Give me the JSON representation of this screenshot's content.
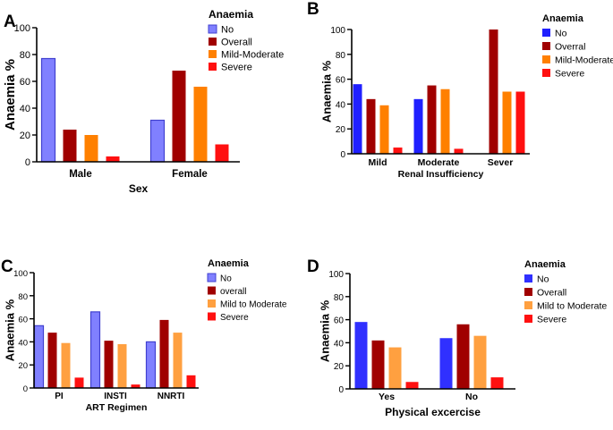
{
  "chart_data": [
    {
      "panel": "A",
      "type": "bar",
      "title": "",
      "xlabel": "Sex",
      "ylabel": "Anaemia %",
      "ylim": [
        0,
        100
      ],
      "yticks": [
        0,
        20,
        40,
        60,
        80,
        100
      ],
      "categories": [
        "Male",
        "Female"
      ],
      "legend_title": "Anaemia",
      "legend_position": "top-right",
      "series": [
        {
          "name": "No",
          "color": "#8080ff",
          "values": [
            77,
            31
          ]
        },
        {
          "name": "Overall",
          "color": "#a00000",
          "values": [
            24,
            68
          ]
        },
        {
          "name": "Mild-Moderate",
          "color": "#ff8000",
          "values": [
            20,
            56
          ]
        },
        {
          "name": "Severe",
          "color": "#ff1010",
          "values": [
            4,
            13
          ]
        }
      ]
    },
    {
      "panel": "B",
      "type": "bar",
      "title": "",
      "xlabel": "Renal Insufficiency",
      "ylabel": "Anaemia %",
      "ylim": [
        0,
        100
      ],
      "yticks": [
        0,
        20,
        40,
        60,
        80,
        100
      ],
      "categories": [
        "Mild",
        "Moderate",
        "Sever"
      ],
      "legend_title": "Anaemia",
      "legend_position": "top-right",
      "series": [
        {
          "name": "No",
          "color": "#2020ff",
          "values": [
            56,
            44,
            0
          ]
        },
        {
          "name": "Overral",
          "color": "#a00000",
          "values": [
            44,
            55,
            100
          ]
        },
        {
          "name": "Mild-Moderate",
          "color": "#ff8000",
          "values": [
            39,
            52,
            50
          ]
        },
        {
          "name": "Severe",
          "color": "#ff1010",
          "values": [
            5,
            4,
            50
          ]
        }
      ]
    },
    {
      "panel": "C",
      "type": "bar",
      "title": "",
      "xlabel": "ART Regimen",
      "ylabel": "Anaemia %",
      "ylim": [
        0,
        100
      ],
      "yticks": [
        0,
        20,
        40,
        60,
        80,
        100
      ],
      "categories": [
        "PI",
        "INSTI",
        "NNRTI"
      ],
      "legend_title": "Anaemia",
      "legend_position": "top-right",
      "series": [
        {
          "name": "No",
          "color": "#8080ff",
          "values": [
            54,
            66,
            40
          ]
        },
        {
          "name": "overall",
          "color": "#a00000",
          "values": [
            48,
            41,
            59
          ]
        },
        {
          "name": "Mild to Moderate",
          "color": "#ffa040",
          "values": [
            39,
            38,
            48
          ]
        },
        {
          "name": "Severe",
          "color": "#ff1010",
          "values": [
            9,
            3,
            11
          ]
        }
      ]
    },
    {
      "panel": "D",
      "type": "bar",
      "title": "",
      "xlabel": "Physical excercise",
      "ylabel": "Anaemia %",
      "ylim": [
        0,
        100
      ],
      "yticks": [
        0,
        20,
        40,
        60,
        80,
        100
      ],
      "categories": [
        "Yes",
        "No"
      ],
      "legend_title": "Anaemia",
      "legend_position": "top-right",
      "series": [
        {
          "name": "No",
          "color": "#3030ff",
          "values": [
            58,
            44
          ]
        },
        {
          "name": "Overall",
          "color": "#a00000",
          "values": [
            42,
            56
          ]
        },
        {
          "name": "Mild to Moderate",
          "color": "#ffa040",
          "values": [
            36,
            46
          ]
        },
        {
          "name": "Severe",
          "color": "#ff1010",
          "values": [
            6,
            10
          ]
        }
      ]
    }
  ]
}
